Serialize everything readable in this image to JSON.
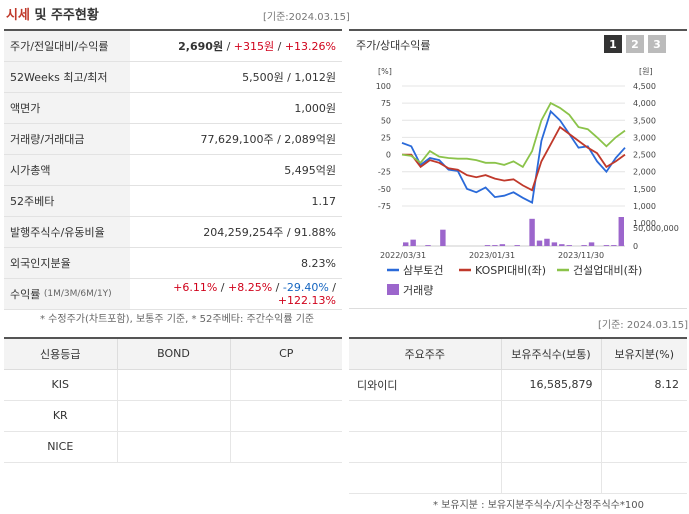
{
  "header": {
    "title_part1": "시세",
    "title_part2": "및 주주현황",
    "base_date": "[기준:2024.03.15]"
  },
  "info": {
    "rows": [
      {
        "label": "주가/전일대비/수익률"
      },
      {
        "label": "52Weeks 최고/최저",
        "value": "5,500원 / 1,012원"
      },
      {
        "label": "액면가",
        "value": "1,000원"
      },
      {
        "label": "거래량/거래대금",
        "value": "77,629,100주 / 2,089억원"
      },
      {
        "label": "시가총액",
        "value": "5,495억원"
      },
      {
        "label": "52주베타",
        "value": "1.17"
      },
      {
        "label": "발행주식수/유동비율",
        "value": "204,259,254주 / 91.88%"
      },
      {
        "label": "외국인지분율",
        "value": "8.23%"
      },
      {
        "label": "수익률",
        "label_sub": "(1M/3M/6M/1Y)"
      }
    ],
    "price": "2,690원",
    "change": "+315원",
    "rate": "+13.26%",
    "sep": " / ",
    "ret_1m": "+6.11%",
    "ret_3m": "+8.25%",
    "ret_6m": "-29.40%",
    "ret_1y": "+122.13%",
    "note": "* 수정주가(차트포함), 보통주 기준, * 52주베타: 주간수익률 기준"
  },
  "chart_panel": {
    "title": "주가/상대수익률",
    "pages": [
      "1",
      "2",
      "3"
    ],
    "base_date": "[기준: 2024.03.15]"
  },
  "chart_data": {
    "type": "line",
    "left_unit": "[%]",
    "right_unit": "[원]",
    "volume_unit": "50,000,000",
    "volume_zero": "0",
    "left_ticks": [
      "100",
      "75",
      "50",
      "25",
      "0",
      "-25",
      "-50",
      "-75"
    ],
    "right_ticks": [
      "4,500",
      "4,000",
      "3,500",
      "3,000",
      "2,500",
      "2,000",
      "1,500",
      "1,000"
    ],
    "x_labels": [
      "2022/03/31",
      "2023/01/31",
      "2023/11/30"
    ],
    "series": [
      {
        "name": "삼부토건",
        "color": "#2a6ad9",
        "values": [
          17,
          12,
          -15,
          -5,
          -8,
          -22,
          -24,
          -50,
          -55,
          -48,
          -62,
          -60,
          -55,
          -63,
          -70,
          20,
          63,
          50,
          30,
          10,
          12,
          -10,
          -25,
          -5,
          10
        ]
      },
      {
        "name": "KOSPI대비(좌)",
        "color": "#c0392b",
        "values": [
          0,
          0,
          -18,
          -8,
          -12,
          -20,
          -22,
          -30,
          -33,
          -30,
          -35,
          -38,
          -36,
          -45,
          -52,
          -10,
          15,
          40,
          30,
          20,
          10,
          2,
          -18,
          -10,
          0
        ]
      },
      {
        "name": "건설업대비(좌)",
        "color": "#8bc34a",
        "values": [
          0,
          -2,
          -12,
          5,
          -3,
          -5,
          -6,
          -6,
          -8,
          -12,
          -12,
          -15,
          -10,
          -18,
          5,
          50,
          75,
          68,
          58,
          40,
          37,
          25,
          12,
          25,
          35
        ]
      }
    ],
    "volume_label": "거래량",
    "volume_color": "#9c66cc",
    "volume": [
      4,
      7,
      0,
      1,
      0,
      18,
      0,
      0,
      0,
      0,
      0,
      1,
      1,
      2,
      0,
      1,
      0,
      30,
      6,
      8,
      4,
      2,
      1,
      0,
      1,
      4,
      0,
      1,
      1,
      32
    ]
  },
  "credit": {
    "headers": [
      "신용등급",
      "BOND",
      "CP"
    ],
    "rows": [
      [
        "KIS",
        "",
        ""
      ],
      [
        "KR",
        "",
        ""
      ],
      [
        "NICE",
        "",
        ""
      ]
    ]
  },
  "holders": {
    "headers": [
      "주요주주",
      "보유주식수(보통)",
      "보유지분(%)"
    ],
    "rows": [
      [
        "디와이디",
        "16,585,879",
        "8.12"
      ],
      [
        "",
        "",
        ""
      ],
      [
        "",
        "",
        ""
      ],
      [
        "",
        "",
        ""
      ]
    ],
    "note": "* 보유지분 : 보유지분주식수/지수산정주식수*100"
  }
}
